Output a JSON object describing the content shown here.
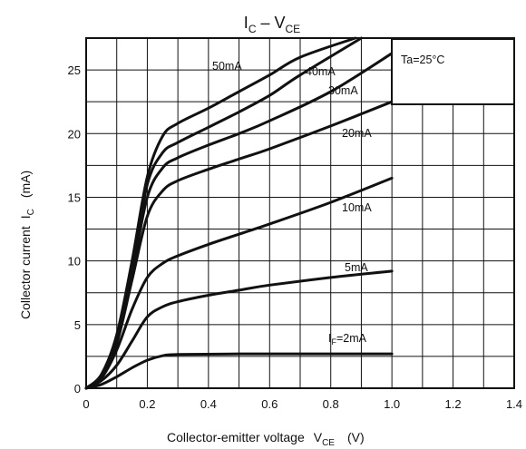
{
  "chart_data": {
    "type": "line",
    "title": {
      "main": "I",
      "main_sub": "C",
      "dash": " – V",
      "tail_sub": "CE"
    },
    "xlabel": {
      "text": "Collector-emitter voltage",
      "symbol": "V",
      "symbol_sub": "CE",
      "unit": "(V)"
    },
    "ylabel": {
      "text": "Collector current",
      "symbol": "I",
      "symbol_sub": "C",
      "unit": "(mA)"
    },
    "xlim": [
      0,
      1.4
    ],
    "ylim": [
      0,
      27.5
    ],
    "x_ticks": [
      "0",
      "0.2",
      "0.4",
      "0.6",
      "0.8",
      "1.0",
      "1.2",
      "1.4"
    ],
    "y_ticks": [
      "0",
      "5",
      "10",
      "15",
      "20",
      "25"
    ],
    "grid": true,
    "annotation": "Ta=25°C",
    "series": [
      {
        "name": "I_F=2mA",
        "label": "2mA",
        "label_prefix": "I",
        "label_sub": "F",
        "label_eq": "=",
        "x": [
          0,
          0.05,
          0.1,
          0.15,
          0.2,
          0.25,
          0.3,
          0.5,
          0.8,
          1.0
        ],
        "y": [
          0,
          0.3,
          0.9,
          1.6,
          2.2,
          2.55,
          2.65,
          2.7,
          2.7,
          2.7
        ]
      },
      {
        "name": "5mA",
        "label": "5mA",
        "x": [
          0,
          0.05,
          0.1,
          0.15,
          0.2,
          0.25,
          0.3,
          0.4,
          0.5,
          0.6,
          0.8,
          1.0
        ],
        "y": [
          0,
          0.6,
          1.8,
          3.7,
          5.6,
          6.4,
          6.8,
          7.3,
          7.7,
          8.1,
          8.7,
          9.2
        ]
      },
      {
        "name": "10mA",
        "label": "10mA",
        "x": [
          0,
          0.05,
          0.1,
          0.15,
          0.2,
          0.25,
          0.3,
          0.4,
          0.5,
          0.6,
          0.8,
          1.0
        ],
        "y": [
          0,
          0.8,
          3.0,
          6.2,
          8.7,
          9.8,
          10.4,
          11.3,
          12.1,
          12.9,
          14.6,
          16.5
        ]
      },
      {
        "name": "20mA",
        "label": "20mA",
        "x": [
          0,
          0.05,
          0.1,
          0.15,
          0.2,
          0.25,
          0.3,
          0.4,
          0.5,
          0.6,
          0.8,
          1.0
        ],
        "y": [
          0,
          0.9,
          3.5,
          8.5,
          13.5,
          15.5,
          16.3,
          17.2,
          18.0,
          18.8,
          20.6,
          22.5
        ]
      },
      {
        "name": "30mA",
        "label": "30mA",
        "x": [
          0,
          0.05,
          0.1,
          0.15,
          0.2,
          0.25,
          0.3,
          0.4,
          0.5,
          0.6,
          0.8,
          1.0
        ],
        "y": [
          0,
          1.0,
          3.8,
          9.0,
          15.0,
          17.3,
          18.1,
          19.1,
          20.0,
          21.0,
          23.3,
          26.3
        ]
      },
      {
        "name": "40mA",
        "label": "40mA",
        "x": [
          0,
          0.05,
          0.1,
          0.15,
          0.2,
          0.25,
          0.3,
          0.4,
          0.5,
          0.6,
          0.7,
          0.9
        ],
        "y": [
          0,
          1.0,
          4.0,
          9.5,
          16.0,
          18.5,
          19.3,
          20.5,
          21.7,
          23.0,
          24.6,
          27.5
        ]
      },
      {
        "name": "50mA",
        "label": "50mA",
        "x": [
          0,
          0.05,
          0.1,
          0.15,
          0.2,
          0.25,
          0.3,
          0.4,
          0.5,
          0.6,
          0.7,
          0.88
        ],
        "y": [
          0,
          1.1,
          4.2,
          10.0,
          16.6,
          19.8,
          20.8,
          22.0,
          23.3,
          24.6,
          26.0,
          27.5
        ]
      }
    ]
  }
}
